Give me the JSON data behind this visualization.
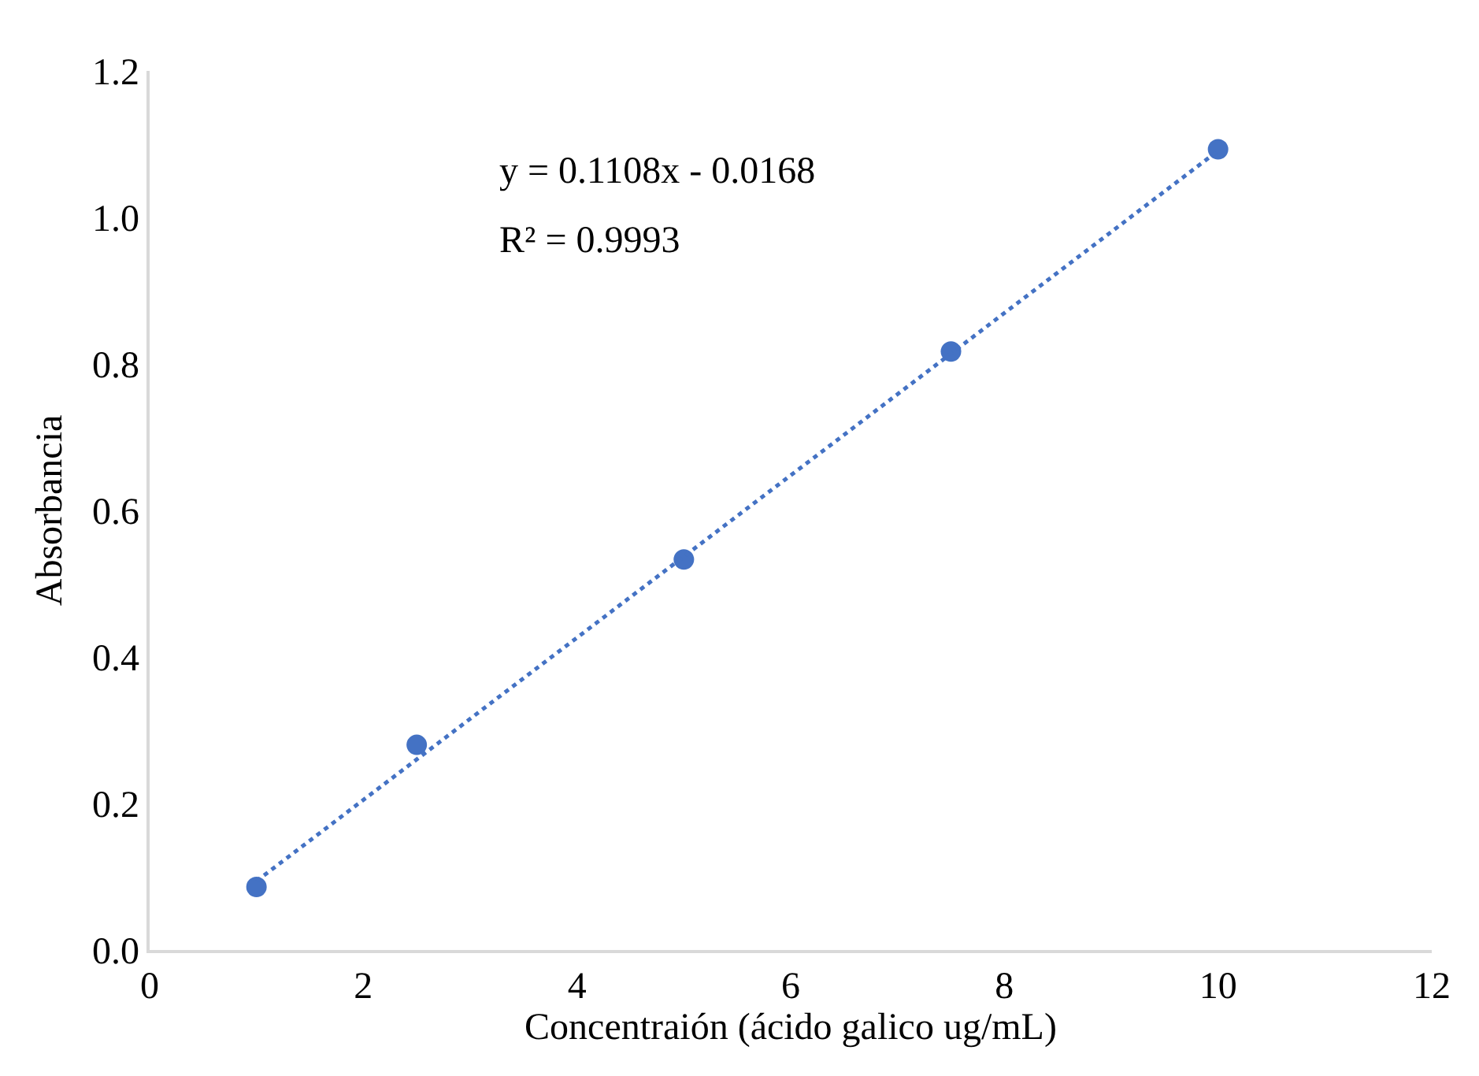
{
  "chart_data": {
    "type": "scatter",
    "xlabel": "Concentraión (ácido galico ug/mL)",
    "ylabel": "Absorbancia",
    "xlim": [
      0,
      12
    ],
    "xticks": [
      0,
      2,
      4,
      6,
      8,
      10,
      12
    ],
    "ylim": [
      0,
      1.2
    ],
    "yticks": [
      {
        "value": 0,
        "label": "0.0"
      },
      {
        "value": 0.2,
        "label": "0.2"
      },
      {
        "value": 0.4,
        "label": "0.4"
      },
      {
        "value": 0.6,
        "label": "0.6"
      },
      {
        "value": 0.8,
        "label": "0.8"
      },
      {
        "value": 1.0,
        "label": "1.0"
      },
      {
        "value": 1.2,
        "label": "1.2"
      }
    ],
    "annotations": [
      "y = 0.1108x - 0.0168",
      "R² = 0.9993"
    ],
    "series": [
      {
        "marker": "circle",
        "color": "#4472c4",
        "x": [
          1,
          2.5,
          5,
          7.5,
          10
        ],
        "values": [
          0.086,
          0.28,
          0.533,
          0.817,
          1.093
        ]
      },
      {
        "type": "line",
        "marker": "none",
        "line_style": "dotted",
        "color": "#4472c4",
        "x": [
          1,
          10
        ],
        "values": [
          0.094,
          1.091
        ]
      }
    ]
  }
}
